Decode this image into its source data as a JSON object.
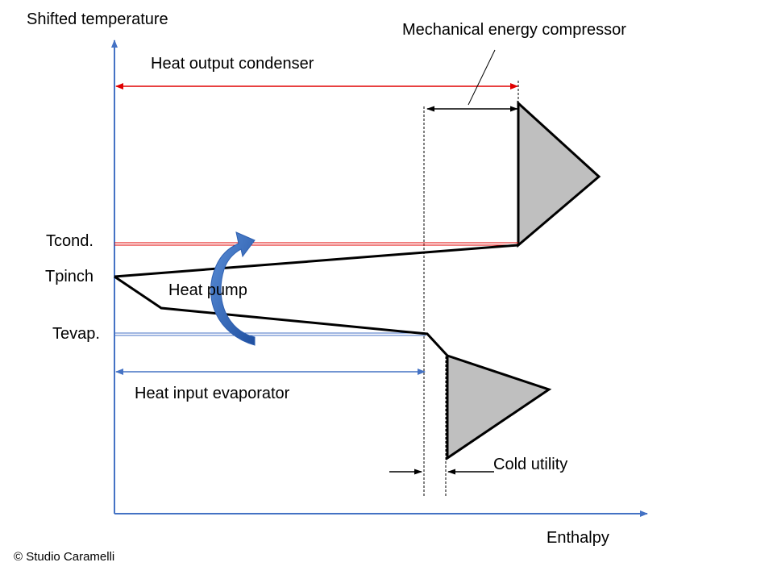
{
  "axes": {
    "y_label": "Shifted temperature",
    "x_label": "Enthalpy"
  },
  "labels": {
    "mech_compressor": "Mechanical energy compressor",
    "heat_output": "Heat output condenser",
    "t_cond": "Tcond.",
    "t_pinch": "Tpinch",
    "heat_pump": "Heat pump",
    "t_evap": "Tevap.",
    "heat_input": "Heat input evaporator",
    "cold_utility": "Cold utility"
  },
  "copyright": "© Studio Caramelli",
  "colors": {
    "axis": "#4472c4",
    "condenser": "#e00000",
    "evaporator": "#4472c4",
    "curve": "#000000",
    "triangle_fill": "#bfbfbf",
    "heat_pump_arrow": "#2e5fb0"
  }
}
